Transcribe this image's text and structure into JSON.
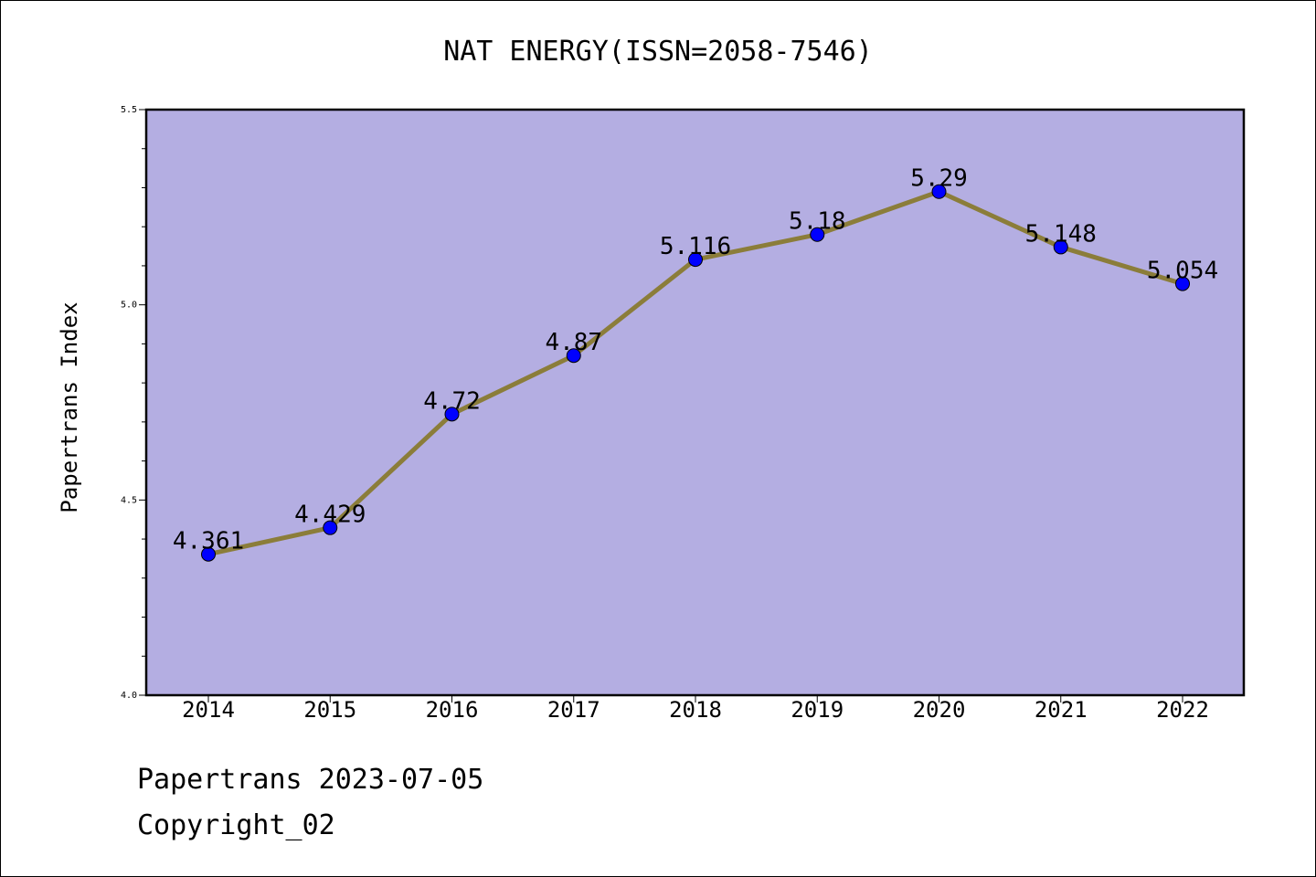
{
  "chart_data": {
    "type": "line",
    "title": "NAT ENERGY(ISSN=2058-7546)",
    "xlabel": "",
    "ylabel": "Papertrans Index",
    "categories": [
      "2014",
      "2015",
      "2016",
      "2017",
      "2018",
      "2019",
      "2020",
      "2021",
      "2022"
    ],
    "series": [
      {
        "values": [
          4.361,
          4.429,
          4.72,
          4.87,
          5.116,
          5.18,
          5.29,
          5.148,
          5.054
        ],
        "labels": [
          "4.361",
          "4.429",
          "4.72",
          "4.87",
          "5.116",
          "5.18",
          "5.29",
          "5.148",
          "5.054"
        ]
      }
    ],
    "ylim": [
      4.0,
      5.5
    ],
    "yticks": [
      "4.0",
      "4.5",
      "5.0",
      "5.5"
    ],
    "ytick_values": [
      4.0,
      4.5,
      5.0,
      5.5
    ],
    "grid": false,
    "colors": {
      "plot_background": "#b4aee2",
      "line": "#8b7d3a",
      "marker": "#0000ff"
    }
  },
  "footer": {
    "line1": "Papertrans 2023-07-05",
    "line2": "Copyright_02"
  }
}
